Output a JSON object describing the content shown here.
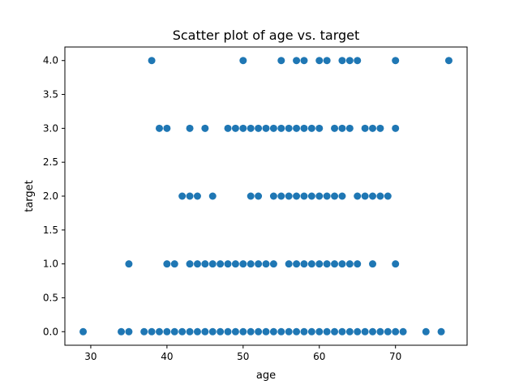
{
  "chart_data": {
    "type": "scatter",
    "title": "Scatter plot of age vs. target",
    "xlabel": "age",
    "ylabel": "target",
    "xlim": [
      26.6,
      79.4
    ],
    "ylim": [
      -0.2,
      4.2
    ],
    "xticks": [
      30,
      40,
      50,
      60,
      70
    ],
    "yticks": [
      0.0,
      0.5,
      1.0,
      1.5,
      2.0,
      2.5,
      3.0,
      3.5,
      4.0
    ],
    "xtick_labels": [
      "30",
      "40",
      "50",
      "60",
      "70"
    ],
    "ytick_labels": [
      "0.0",
      "0.5",
      "1.0",
      "1.5",
      "2.0",
      "2.5",
      "3.0",
      "3.5",
      "4.0"
    ],
    "grid": false,
    "marker_color": "#1f77b4",
    "points": [
      {
        "target": 4,
        "ages": [
          38,
          50,
          55,
          57,
          58,
          60,
          61,
          63,
          64,
          65,
          70,
          77
        ]
      },
      {
        "target": 3,
        "ages": [
          39,
          40,
          43,
          45,
          48,
          49,
          50,
          51,
          52,
          53,
          54,
          55,
          56,
          57,
          58,
          59,
          60,
          62,
          63,
          64,
          66,
          67,
          68,
          70
        ]
      },
      {
        "target": 2,
        "ages": [
          42,
          43,
          44,
          46,
          51,
          52,
          54,
          55,
          56,
          57,
          58,
          59,
          60,
          61,
          62,
          63,
          65,
          66,
          67,
          68,
          69
        ]
      },
      {
        "target": 1,
        "ages": [
          35,
          40,
          41,
          43,
          44,
          45,
          46,
          47,
          48,
          49,
          50,
          51,
          52,
          53,
          54,
          56,
          57,
          58,
          59,
          60,
          61,
          62,
          63,
          64,
          65,
          67,
          70
        ]
      },
      {
        "target": 0,
        "ages": [
          29,
          34,
          35,
          37,
          38,
          39,
          40,
          41,
          42,
          43,
          44,
          45,
          46,
          47,
          48,
          49,
          50,
          51,
          52,
          53,
          54,
          55,
          56,
          57,
          58,
          59,
          60,
          61,
          62,
          63,
          64,
          65,
          66,
          67,
          68,
          69,
          70,
          71,
          74,
          76
        ]
      }
    ]
  }
}
